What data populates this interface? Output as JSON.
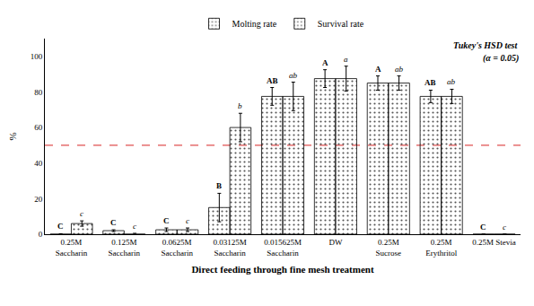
{
  "chart_data": {
    "type": "bar",
    "categories": [
      "0.25M\nSaccharin",
      "0.125M\nSaccharin",
      "0.0625M\nSaccharin",
      "0.03125M\nSaccharin",
      "0.015625M\nSaccharin",
      "DW",
      "0.25M\nSucrose",
      "0.25M\nErythritol",
      "0.25M Stevia"
    ],
    "series": [
      {
        "name": "Molting rate",
        "color": "#e8e8e8",
        "values": [
          0.0,
          2.0,
          2.5,
          15.0,
          77.5,
          87.5,
          85.0,
          77.5,
          0.0
        ],
        "errors": [
          0.3,
          0.5,
          1.0,
          8.0,
          5.0,
          5.0,
          4.0,
          3.5,
          0.0
        ],
        "significance_labels": [
          "C",
          "C",
          "C",
          "B",
          "AB",
          "A",
          "A",
          "AB",
          "C"
        ]
      },
      {
        "name": "Survival rate",
        "color": "#d0d0d0",
        "values": [
          6.0,
          0.0,
          2.5,
          60.0,
          77.5,
          87.5,
          85.0,
          77.5,
          0.0
        ],
        "errors": [
          1.5,
          0.5,
          1.0,
          8.0,
          8.0,
          7.0,
          4.0,
          4.0,
          0.0
        ],
        "significance_labels": [
          "c",
          "c",
          "c",
          "b",
          "ab",
          "a",
          "ab",
          "ab",
          "c"
        ]
      }
    ],
    "reference_line": {
      "value": 50.0,
      "color": "#e05050",
      "line_style": "dashed"
    },
    "ylabel": "%",
    "xlabel": "Direct feeding through fine mesh treatment",
    "ylim": [
      0,
      110
    ],
    "yticks": [
      0,
      20,
      40,
      60,
      80,
      100
    ],
    "annotations": [
      "Tukey's HSD test",
      "(α = 0.05)"
    ],
    "legend": "top",
    "grid": false
  }
}
